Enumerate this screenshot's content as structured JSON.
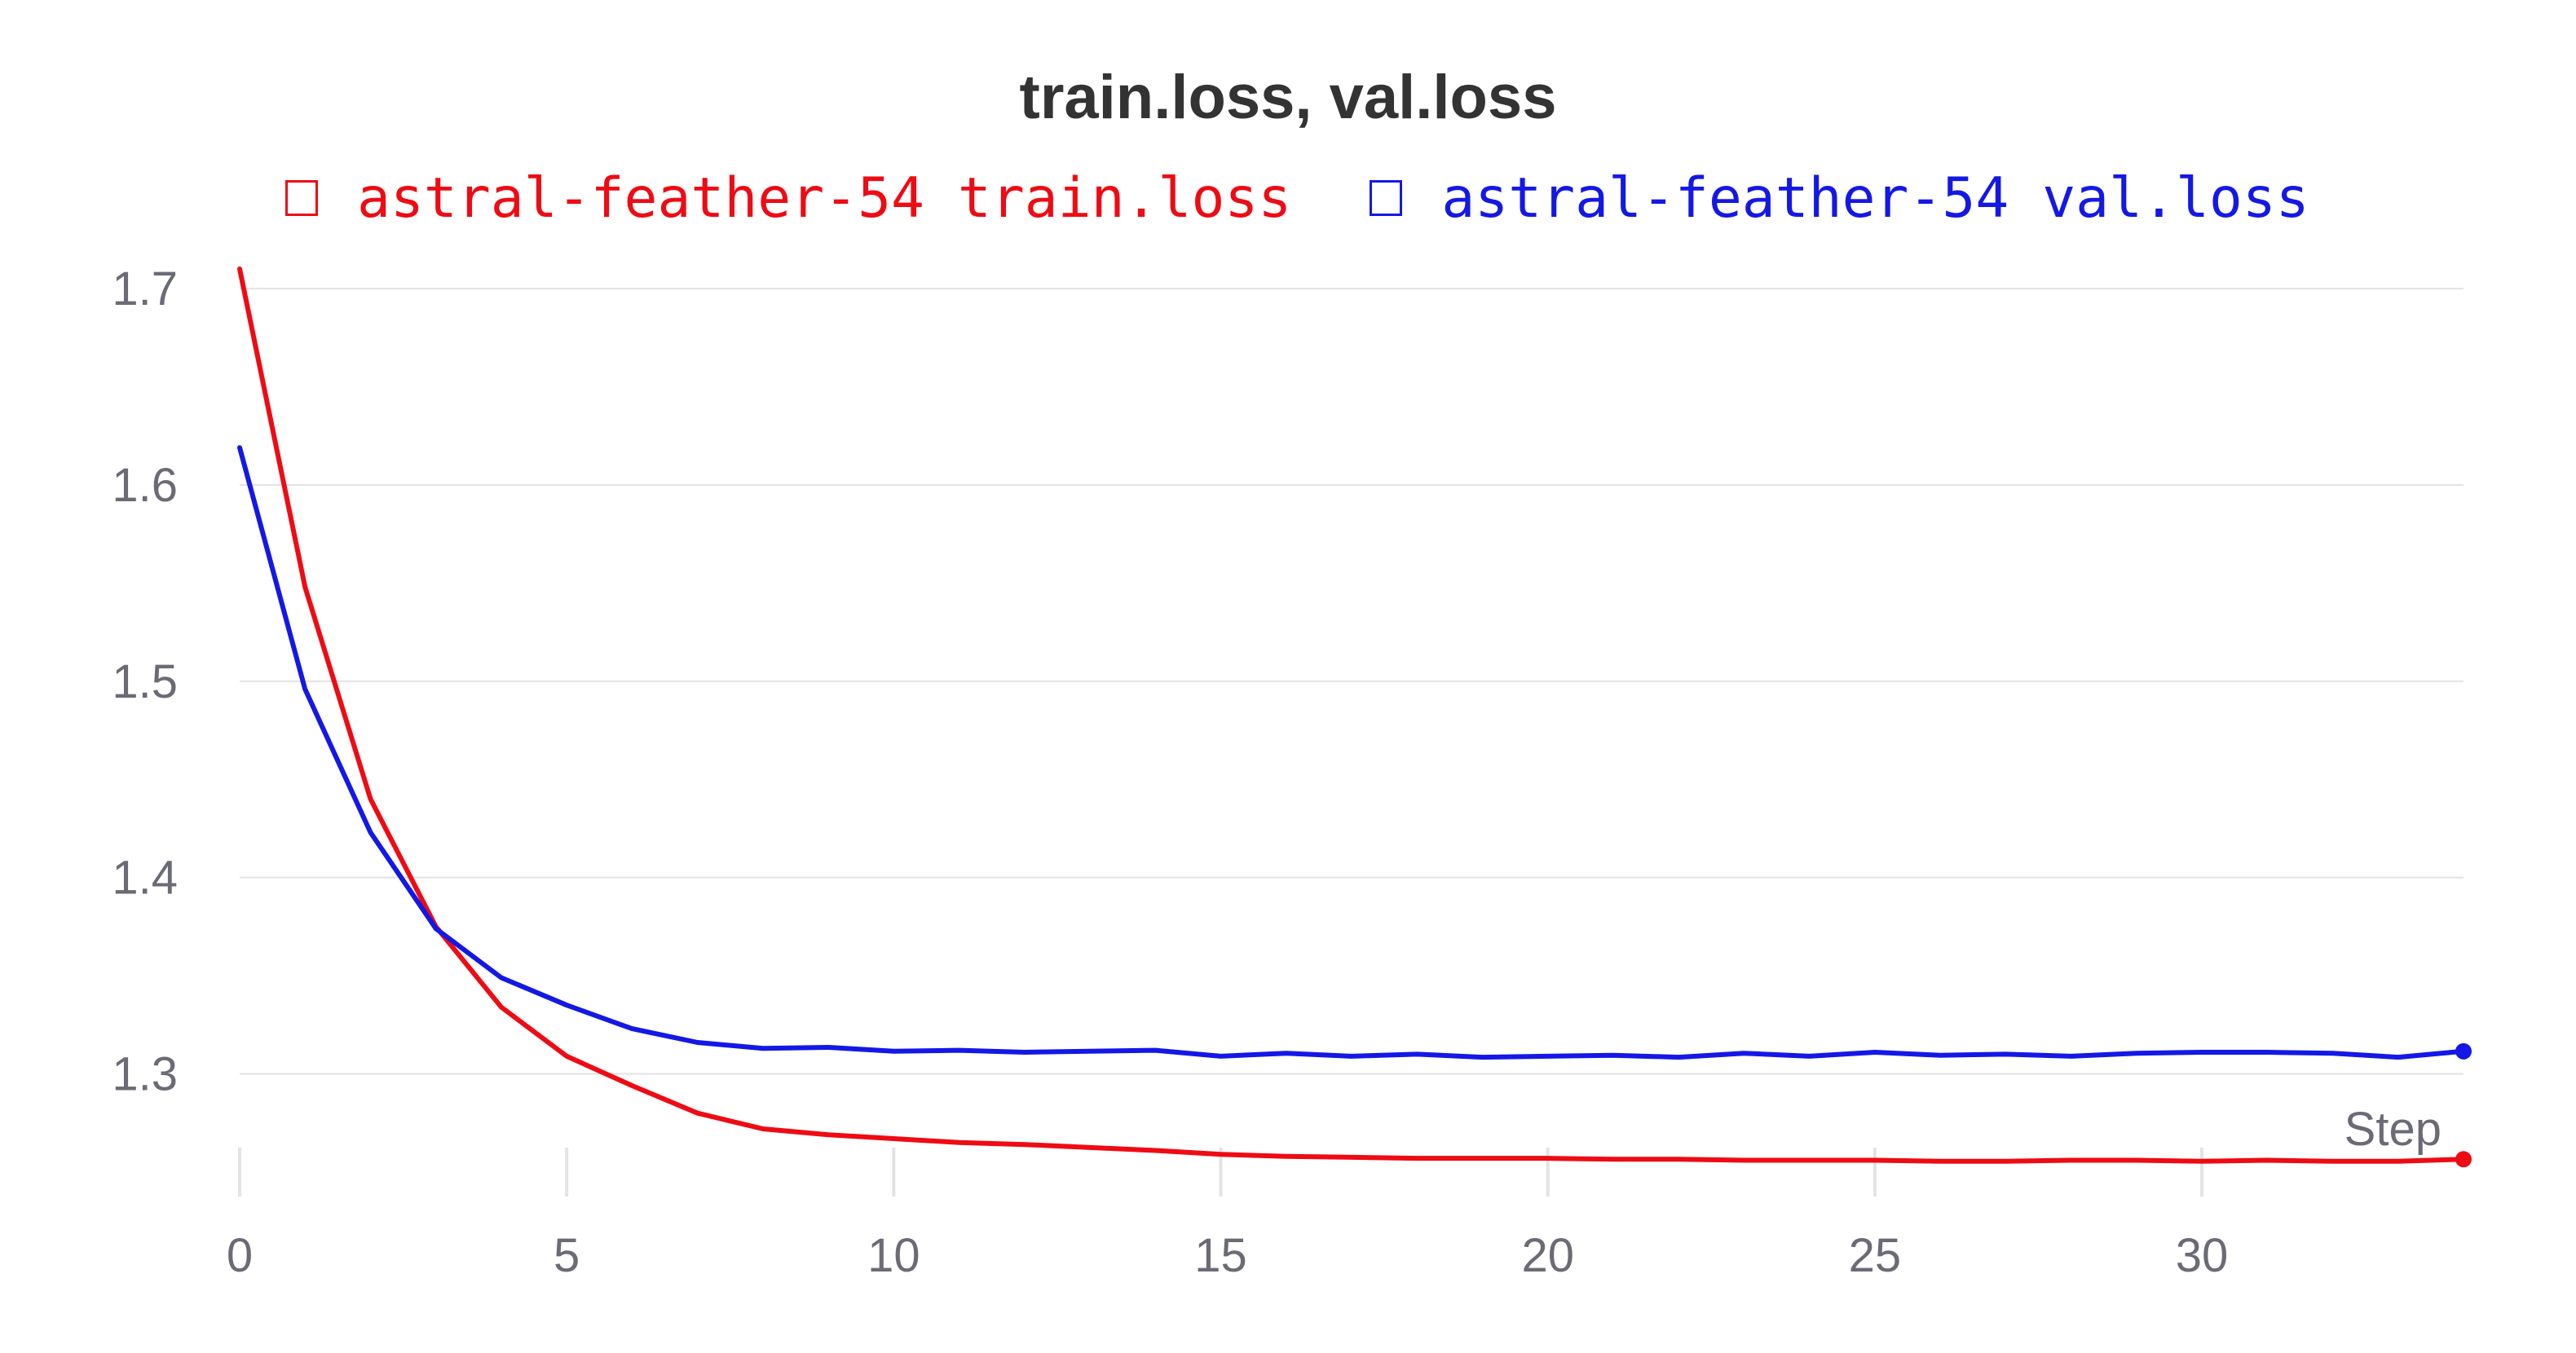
{
  "chart_data": {
    "type": "line",
    "title": "train.loss, val.loss",
    "xlabel": "Step",
    "ylabel": "",
    "xlim": [
      0,
      34
    ],
    "ylim": [
      1.245,
      1.715
    ],
    "x_ticks": [
      0,
      5,
      10,
      15,
      20,
      25,
      30
    ],
    "y_ticks": [
      1.3,
      1.4,
      1.5,
      1.6,
      1.7
    ],
    "grid": true,
    "legend_position": "top",
    "x": [
      0,
      1,
      2,
      3,
      4,
      5,
      6,
      7,
      8,
      9,
      10,
      11,
      12,
      13,
      14,
      15,
      16,
      17,
      18,
      19,
      20,
      21,
      22,
      23,
      24,
      25,
      26,
      27,
      28,
      29,
      30,
      31,
      32,
      33,
      34
    ],
    "series": [
      {
        "name": "astral-feather-54 train.loss",
        "color": "#ee0b14",
        "values": [
          1.71,
          1.548,
          1.44,
          1.375,
          1.334,
          1.309,
          1.294,
          1.28,
          1.272,
          1.269,
          1.267,
          1.265,
          1.264,
          1.2625,
          1.261,
          1.259,
          1.258,
          1.2575,
          1.257,
          1.257,
          1.257,
          1.2565,
          1.2565,
          1.256,
          1.256,
          1.256,
          1.2555,
          1.2555,
          1.256,
          1.256,
          1.2555,
          1.256,
          1.2555,
          1.2555,
          1.2565
        ]
      },
      {
        "name": "astral-feather-54 val.loss",
        "color": "#1418e6",
        "values": [
          1.619,
          1.496,
          1.423,
          1.374,
          1.349,
          1.335,
          1.323,
          1.316,
          1.313,
          1.3135,
          1.3115,
          1.312,
          1.311,
          1.3115,
          1.312,
          1.309,
          1.3105,
          1.309,
          1.31,
          1.3085,
          1.309,
          1.3095,
          1.3085,
          1.3105,
          1.309,
          1.311,
          1.3095,
          1.31,
          1.309,
          1.3105,
          1.311,
          1.311,
          1.3105,
          1.3085,
          1.3115
        ]
      }
    ]
  }
}
